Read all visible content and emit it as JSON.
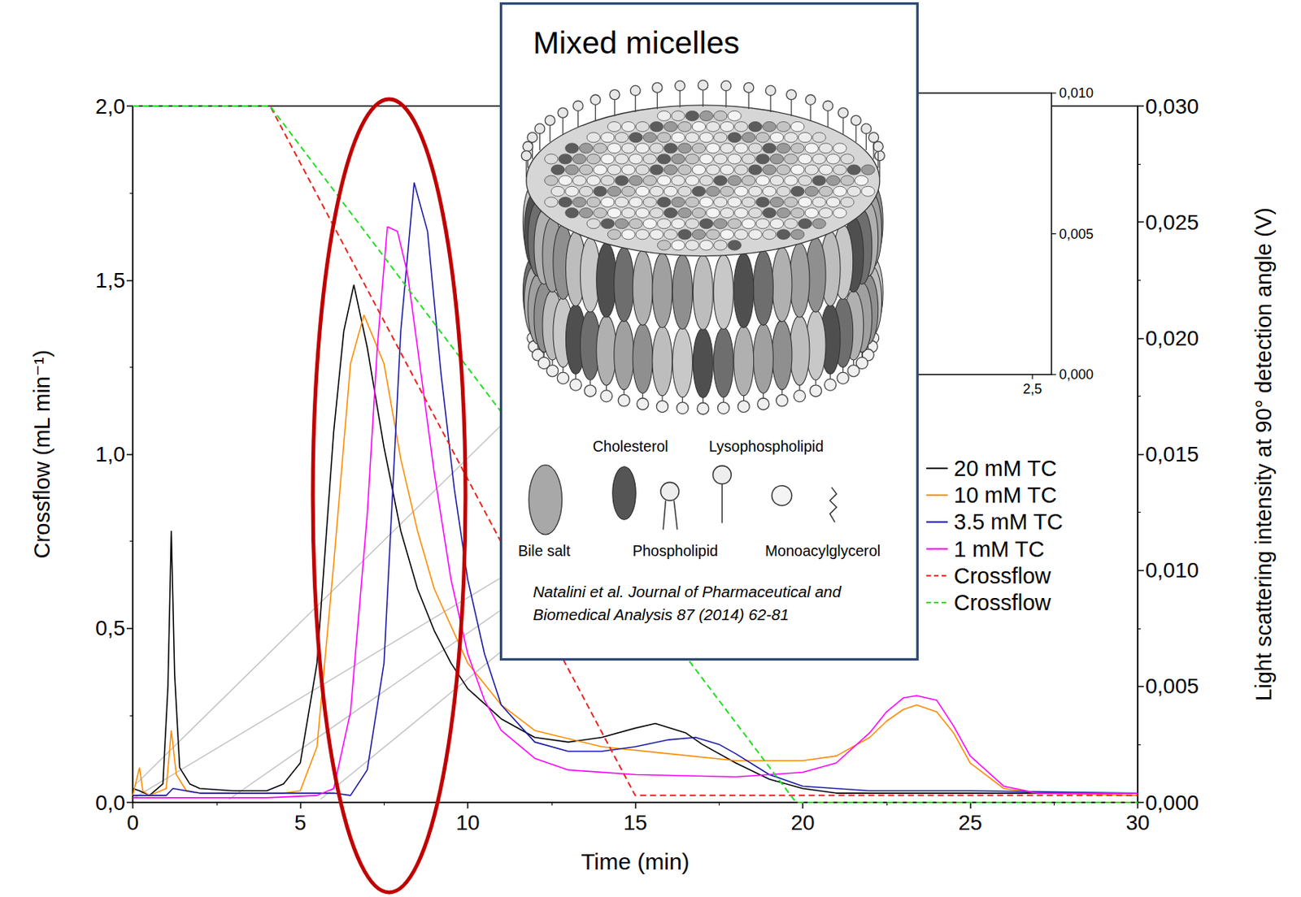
{
  "chart_data": {
    "type": "line",
    "x_label": "Time (min)",
    "y_label": "Crossflow (mL min⁻¹)",
    "y2_label": "Light scattering intensity at 90° detection angle (V)",
    "xlim": [
      0,
      30
    ],
    "xticks": [
      0,
      5,
      10,
      15,
      20,
      25,
      30
    ],
    "ylim": [
      0,
      2
    ],
    "yticks": [
      {
        "value": 0,
        "label": "0,0"
      },
      {
        "value": 0.5,
        "label": "0,5"
      },
      {
        "value": 1,
        "label": "1,0"
      },
      {
        "value": 1.5,
        "label": "1,5"
      },
      {
        "value": 2,
        "label": "2,0"
      }
    ],
    "y2lim": [
      0,
      0.03
    ],
    "y2ticks": [
      {
        "value": 0,
        "label": "0,000"
      },
      {
        "value": 0.005,
        "label": "0,005"
      },
      {
        "value": 0.01,
        "label": "0,010"
      },
      {
        "value": 0.015,
        "label": "0,015"
      },
      {
        "value": 0.02,
        "label": "0,020"
      },
      {
        "value": 0.025,
        "label": "0,025"
      },
      {
        "value": 0.03,
        "label": "0,030"
      }
    ],
    "grid": false,
    "legend": "right",
    "series": [
      {
        "name": "20 mM TC",
        "color": "#000000",
        "axis": "y2",
        "line_style": "solid",
        "x": [
          0,
          0.2,
          0.5,
          0.9,
          1.05,
          1.15,
          1.25,
          1.4,
          1.7,
          2,
          3,
          4,
          4.5,
          5,
          5.5,
          6,
          6.3,
          6.6,
          7,
          7.5,
          8,
          8.5,
          9,
          9.5,
          10,
          11,
          12,
          13,
          14,
          15,
          15.6,
          16.5,
          17,
          18,
          19,
          20,
          21,
          25,
          30
        ],
        "values": [
          0.0006,
          0.0005,
          0.0003,
          0.0008,
          0.005,
          0.0117,
          0.0055,
          0.0015,
          0.0008,
          0.0006,
          0.0005,
          0.0005,
          0.0008,
          0.0017,
          0.006,
          0.016,
          0.0203,
          0.0223,
          0.0196,
          0.0153,
          0.0117,
          0.0092,
          0.0074,
          0.006,
          0.0049,
          0.0036,
          0.0028,
          0.0026,
          0.0028,
          0.0032,
          0.0034,
          0.003,
          0.0025,
          0.0017,
          0.001,
          0.0006,
          0.0004,
          0.0004,
          0.0004
        ]
      },
      {
        "name": "10 mM TC",
        "color": "#ff8c00",
        "axis": "y2",
        "line_style": "solid",
        "x": [
          0,
          0.2,
          0.3,
          0.5,
          1.0,
          1.15,
          1.3,
          1.6,
          2,
          3,
          4,
          4.5,
          5,
          5.5,
          6,
          6.5,
          6.9,
          7.5,
          8,
          8.5,
          9,
          10,
          11,
          12,
          14,
          16,
          18,
          20,
          21,
          22,
          22.5,
          23,
          23.4,
          24,
          24.5,
          25,
          26,
          27,
          30
        ],
        "values": [
          0.0003,
          0.0015,
          0.0005,
          0.0003,
          0.0006,
          0.0031,
          0.0012,
          0.0005,
          0.0004,
          0.0004,
          0.0004,
          0.0004,
          0.0005,
          0.0024,
          0.0103,
          0.0189,
          0.021,
          0.0189,
          0.0148,
          0.0117,
          0.0092,
          0.006,
          0.0042,
          0.0031,
          0.0024,
          0.0021,
          0.0018,
          0.0018,
          0.002,
          0.0028,
          0.0035,
          0.004,
          0.0042,
          0.0039,
          0.003,
          0.0017,
          0.0006,
          0.0004,
          0.0003
        ]
      },
      {
        "name": "3.5 mM TC",
        "color": "#1a1aa8",
        "axis": "y2",
        "line_style": "solid",
        "x": [
          0,
          1,
          1.2,
          2,
          4,
          6,
          6.5,
          7,
          7.5,
          8,
          8.4,
          8.8,
          9.2,
          9.6,
          10,
          10.5,
          11,
          12,
          13,
          14,
          15,
          16,
          16.8,
          17.5,
          18,
          19,
          20,
          22,
          25,
          30
        ],
        "values": [
          0.0003,
          0.0003,
          0.0006,
          0.0004,
          0.0004,
          0.0004,
          0.0003,
          0.0014,
          0.006,
          0.0203,
          0.0267,
          0.0246,
          0.0185,
          0.0135,
          0.0096,
          0.0064,
          0.0042,
          0.0026,
          0.0022,
          0.0022,
          0.0024,
          0.0027,
          0.0028,
          0.0025,
          0.0021,
          0.0012,
          0.0007,
          0.0005,
          0.0005,
          0.0004
        ]
      },
      {
        "name": "1 mM TC",
        "color": "#ff00ff",
        "axis": "y2",
        "line_style": "solid",
        "x": [
          0,
          2,
          4,
          5.5,
          6,
          6.5,
          7,
          7.3,
          7.6,
          7.9,
          8.2,
          8.5,
          9,
          9.5,
          10,
          10.5,
          11,
          12,
          13,
          15,
          18,
          20,
          21,
          22,
          22.5,
          23,
          23.4,
          24,
          24.5,
          25,
          26,
          27,
          30
        ],
        "values": [
          0.0002,
          0.0002,
          0.0002,
          0.0003,
          0.0006,
          0.0039,
          0.0124,
          0.0196,
          0.0248,
          0.0246,
          0.0228,
          0.0196,
          0.0142,
          0.0096,
          0.0064,
          0.0044,
          0.0031,
          0.0019,
          0.0014,
          0.0012,
          0.0011,
          0.0013,
          0.0017,
          0.003,
          0.0039,
          0.0045,
          0.0046,
          0.0044,
          0.0033,
          0.002,
          0.0007,
          0.0004,
          0.0004
        ]
      },
      {
        "name": "Crossflow",
        "color": "#e8251f",
        "axis": "y",
        "line_style": "dashed",
        "x": [
          0,
          4.1,
          15,
          30
        ],
        "values": [
          2,
          2,
          0.02,
          0.02
        ]
      },
      {
        "name": "Crossflow",
        "color": "#22dd22",
        "axis": "y",
        "line_style": "dashed",
        "x": [
          0,
          4.1,
          19.8,
          30
        ],
        "values": [
          2,
          2,
          0,
          0
        ]
      }
    ],
    "zoom_inset": {
      "xlim": [
        0,
        2.5
      ],
      "ylim": [
        0,
        0.01
      ],
      "xticks": [
        {
          "value": 2.5,
          "label": "2,5"
        }
      ],
      "yticks": [
        {
          "value": 0,
          "label": "0,000"
        },
        {
          "value": 0.005,
          "label": "0,005"
        },
        {
          "value": 0.01,
          "label": "0,010"
        }
      ]
    },
    "inset": {
      "title": "Mixed micelles",
      "components": [
        "Cholesterol",
        "Lysophospholipid",
        "Bile salt",
        "Phospholipid",
        "Monoacylglycerol"
      ],
      "citation": "Natalini et al. Journal of Pharmaceutical and Biomedical Analysis 87 (2014) 62-81"
    }
  }
}
